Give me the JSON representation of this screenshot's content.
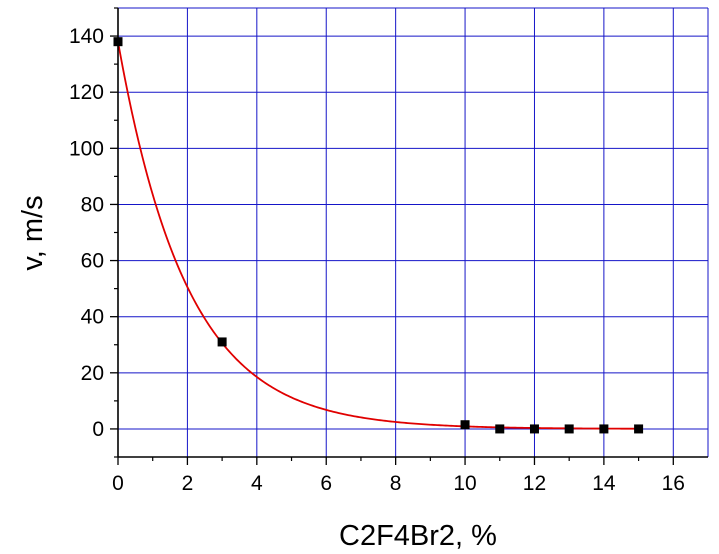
{
  "chart_data": {
    "type": "scatter",
    "title": "",
    "xlabel": "C2F4Br2, %",
    "ylabel": "v, m/s",
    "xlim": [
      0,
      17
    ],
    "ylim": [
      -10,
      150
    ],
    "grid": true,
    "x_ticks": [
      0,
      2,
      4,
      6,
      8,
      10,
      12,
      14,
      16
    ],
    "y_ticks": [
      0,
      20,
      40,
      60,
      80,
      100,
      120,
      140
    ],
    "series": [
      {
        "type": "scatter",
        "marker": "square",
        "color": "#000000",
        "x": [
          0,
          3,
          10,
          11,
          12,
          13,
          14,
          15
        ],
        "y": [
          138,
          31,
          1.5,
          0,
          0,
          0,
          0,
          0
        ]
      },
      {
        "type": "line",
        "color": "#e00000",
        "fit": "exponential",
        "x": [
          0,
          0.5,
          1,
          1.5,
          2,
          2.5,
          3,
          3.5,
          4,
          4.5,
          5,
          5.5,
          6,
          6.5,
          7,
          7.5,
          8,
          8.5,
          9,
          9.5,
          10,
          11,
          12,
          13,
          14,
          15
        ],
        "y": [
          138,
          107.4,
          83.6,
          65.0,
          50.6,
          39.4,
          30.6,
          23.8,
          18.6,
          14.4,
          11.2,
          8.7,
          6.8,
          5.3,
          4.1,
          3.2,
          2.5,
          1.9,
          1.5,
          1.2,
          0.9,
          0.5,
          0.3,
          0.2,
          0.1,
          0.07
        ]
      }
    ],
    "colors": {
      "grid": "#1515c8",
      "axis": "#000000",
      "fit_line": "#e00000",
      "marker": "#000000"
    }
  }
}
